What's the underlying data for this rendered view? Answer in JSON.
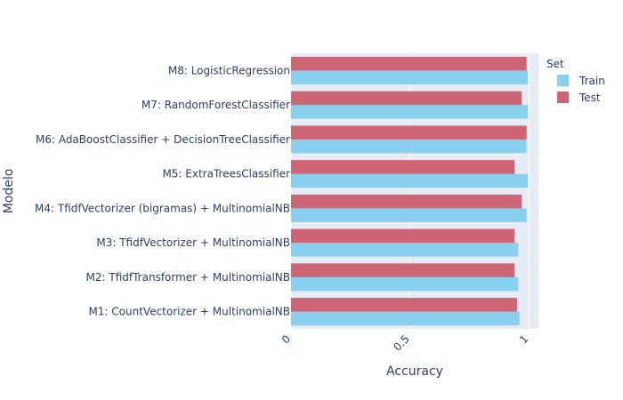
{
  "chart_data": {
    "type": "bar",
    "orientation": "horizontal",
    "barmode": "group",
    "xlabel": "Accuracy",
    "ylabel": "Modelo",
    "xlim": [
      0,
      1.04
    ],
    "xticks": [
      "0",
      "0.5",
      "1"
    ],
    "xtick_values": [
      0,
      0.5,
      1
    ],
    "legend_title": "Set",
    "legend_position": "top-right",
    "grid": true,
    "categories": [
      "M1: CountVectorizer + MultinomialNB",
      "M2: TfidfTransformer + MultinomialNB",
      "M3: TfidfVectorizer + MultinomialNB",
      "M4: TfidfVectorizer (bigramas) + MultinomialNB",
      "M5: ExtraTreesClassifier",
      "M6: AdaBoostClassifier + DecisionTreeClassifier",
      "M7: RandomForestClassifier",
      "M8: LogisticRegression"
    ],
    "series": [
      {
        "name": "Train",
        "color": "#89cff0",
        "values": [
          0.96,
          0.955,
          0.955,
          0.99,
          0.995,
          0.99,
          0.995,
          0.995
        ]
      },
      {
        "name": "Test",
        "color": "#cd6574",
        "values": [
          0.95,
          0.94,
          0.94,
          0.97,
          0.94,
          0.99,
          0.97,
          0.99
        ]
      }
    ]
  }
}
